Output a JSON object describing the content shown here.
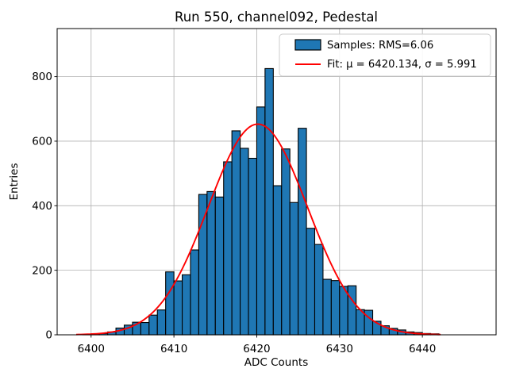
{
  "chart_data": {
    "type": "bar",
    "title": "Run 550, channel092, Pedestal",
    "xlabel": "ADC Counts",
    "ylabel": "Entries",
    "xlim": [
      6395.9,
      6448.9
    ],
    "ylim": [
      0,
      949
    ],
    "xticks": [
      6400,
      6410,
      6420,
      6430,
      6440
    ],
    "xtick_labels": [
      "6400",
      "6410",
      "6420",
      "6430",
      "6440"
    ],
    "yticks": [
      0,
      200,
      400,
      600,
      800
    ],
    "ytick_labels": [
      "0",
      "200",
      "400",
      "600",
      "800"
    ],
    "grid": true,
    "legend_position": "upper right",
    "bin_width": 1,
    "bin_left_edges": [
      6399,
      6400,
      6401,
      6402,
      6403,
      6404,
      6405,
      6406,
      6407,
      6408,
      6409,
      6410,
      6411,
      6412,
      6413,
      6414,
      6415,
      6416,
      6417,
      6418,
      6419,
      6420,
      6421,
      6422,
      6423,
      6424,
      6425,
      6426,
      6427,
      6428,
      6429,
      6430,
      6431,
      6432,
      6433,
      6434,
      6435,
      6436,
      6437,
      6438,
      6439,
      6440,
      6441
    ],
    "values": [
      2,
      3,
      4,
      9,
      21,
      30,
      39,
      38,
      61,
      77,
      195,
      167,
      186,
      263,
      435,
      444,
      427,
      536,
      632,
      578,
      547,
      706,
      825,
      462,
      576,
      410,
      640,
      330,
      280,
      172,
      168,
      150,
      152,
      78,
      76,
      42,
      28,
      20,
      15,
      9,
      7,
      4,
      3
    ],
    "series_label": "Samples: RMS=6.06",
    "fit": {
      "label": "Fit: μ = 6420.134, σ = 5.991",
      "mu": 6420.134,
      "sigma": 5.991,
      "amplitude": 653,
      "x_start": 6398.2,
      "x_end": 6442.2
    },
    "colors": {
      "bar_fill": "#1f77b4",
      "bar_edge": "#000000",
      "fit_line": "#ff0000",
      "grid": "#b0b0b0",
      "axes_edge": "#000000",
      "legend_border": "#cccccc",
      "background": "#ffffff"
    }
  },
  "legend": {
    "samples_label": "Samples: RMS=6.06",
    "fit_label": "Fit: μ = 6420.134, σ = 5.991"
  }
}
